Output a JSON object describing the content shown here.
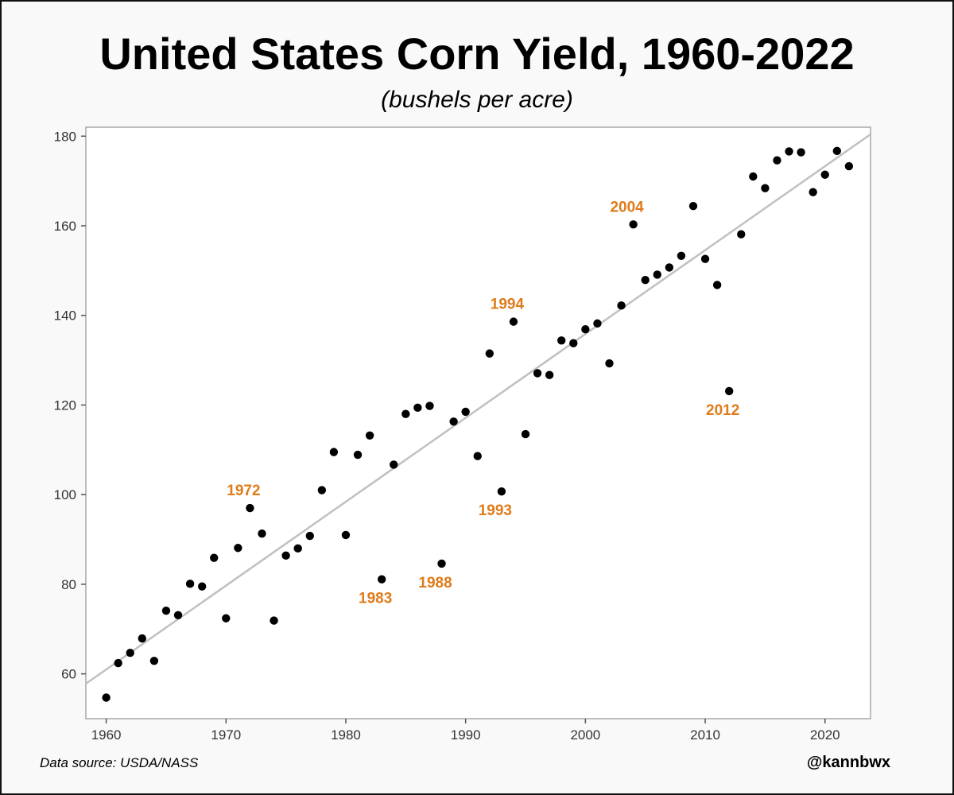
{
  "chart_data": {
    "type": "scatter",
    "title": "United States Corn Yield, 1960-2022",
    "subtitle": "(bushels per acre)",
    "xlim": [
      1958.3,
      2023.8
    ],
    "ylim": [
      50,
      182
    ],
    "x_ticks": [
      1960,
      1970,
      1980,
      1990,
      2000,
      2010,
      2020
    ],
    "y_ticks": [
      60,
      80,
      100,
      120,
      140,
      160,
      180
    ],
    "grid": false,
    "marker_color": "#000000",
    "trendline": {
      "color": "#c0c0c0",
      "x": [
        1958.3,
        2023.8
      ],
      "y": [
        57.8,
        180.4
      ]
    },
    "series": [
      {
        "x": [
          1960,
          1961,
          1962,
          1963,
          1964,
          1965,
          1966,
          1967,
          1968,
          1969,
          1970,
          1971,
          1972,
          1973,
          1974,
          1975,
          1976,
          1977,
          1978,
          1979,
          1980,
          1981,
          1982,
          1983,
          1984,
          1985,
          1986,
          1987,
          1988,
          1989,
          1990,
          1991,
          1992,
          1993,
          1994,
          1995,
          1996,
          1997,
          1998,
          1999,
          2000,
          2001,
          2002,
          2003,
          2004,
          2005,
          2006,
          2007,
          2008,
          2009,
          2010,
          2011,
          2012,
          2013,
          2014,
          2015,
          2016,
          2017,
          2018,
          2019,
          2020,
          2021,
          2022
        ],
        "y": [
          54.7,
          62.4,
          64.7,
          67.9,
          62.9,
          74.1,
          73.1,
          80.1,
          79.5,
          85.9,
          72.4,
          88.1,
          97.0,
          91.3,
          71.9,
          86.4,
          88.0,
          90.8,
          101.0,
          109.5,
          91.0,
          108.9,
          113.2,
          81.1,
          106.7,
          118.0,
          119.4,
          119.8,
          84.6,
          116.3,
          118.5,
          108.6,
          131.5,
          100.7,
          138.6,
          113.5,
          127.1,
          126.7,
          134.4,
          133.8,
          136.9,
          138.2,
          129.3,
          142.2,
          160.3,
          147.9,
          149.1,
          150.7,
          153.3,
          164.4,
          152.6,
          146.8,
          123.1,
          158.1,
          171.0,
          168.4,
          174.6,
          176.6,
          176.4,
          167.5,
          171.4,
          176.7,
          173.3
        ]
      }
    ],
    "annotations": [
      {
        "year": 1972,
        "label": "1972",
        "y": 97.0,
        "position": "above"
      },
      {
        "year": 1983,
        "label": "1983",
        "y": 81.1,
        "position": "below"
      },
      {
        "year": 1988,
        "label": "1988",
        "y": 84.6,
        "position": "below"
      },
      {
        "year": 1993,
        "label": "1993",
        "y": 100.7,
        "position": "below"
      },
      {
        "year": 1994,
        "label": "1994",
        "y": 138.6,
        "position": "above"
      },
      {
        "year": 2004,
        "label": "2004",
        "y": 160.3,
        "position": "above"
      },
      {
        "year": 2012,
        "label": "2012",
        "y": 123.1,
        "position": "below"
      }
    ],
    "annotation_color": "#e07b1a",
    "source": "Data source: USDA/NASS",
    "handle": "@kannbwx"
  }
}
